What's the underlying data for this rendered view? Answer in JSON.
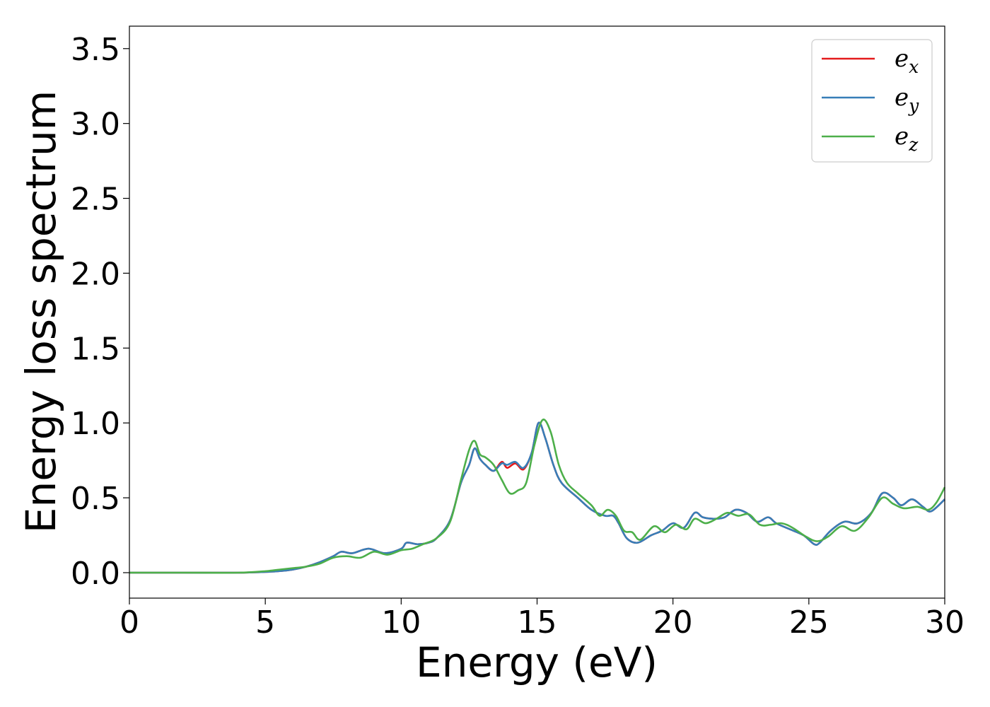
{
  "chart_data": {
    "type": "line",
    "title": "",
    "xlabel": "Energy (eV)",
    "ylabel": "Energy loss spectrum",
    "xlim": [
      0,
      30
    ],
    "ylim": [
      -0.17,
      3.65
    ],
    "xticks": [
      0,
      5,
      10,
      15,
      20,
      25,
      30
    ],
    "yticks": [
      0.0,
      0.5,
      1.0,
      1.5,
      2.0,
      2.5,
      3.0,
      3.5
    ],
    "xtick_labels": [
      "0",
      "5",
      "10",
      "15",
      "20",
      "25",
      "30"
    ],
    "ytick_labels": [
      "0.0",
      "0.5",
      "1.0",
      "1.5",
      "2.0",
      "2.5",
      "3.0",
      "3.5"
    ],
    "grid": false,
    "legend_position": "top-right",
    "series": [
      {
        "name": "e_x",
        "legend_base": "e",
        "legend_sub": "x",
        "color": "#e41a1c",
        "points": [
          [
            0,
            0.0
          ],
          [
            2,
            0.0
          ],
          [
            4,
            0.0
          ],
          [
            5,
            0.005
          ],
          [
            5.5,
            0.01
          ],
          [
            6,
            0.02
          ],
          [
            6.5,
            0.04
          ],
          [
            7,
            0.07
          ],
          [
            7.5,
            0.11
          ],
          [
            7.8,
            0.14
          ],
          [
            8.2,
            0.13
          ],
          [
            8.8,
            0.16
          ],
          [
            9.4,
            0.13
          ],
          [
            10,
            0.16
          ],
          [
            10.2,
            0.2
          ],
          [
            10.6,
            0.19
          ],
          [
            11,
            0.2
          ],
          [
            11.3,
            0.23
          ],
          [
            11.8,
            0.35
          ],
          [
            12.2,
            0.6
          ],
          [
            12.5,
            0.72
          ],
          [
            12.7,
            0.83
          ],
          [
            12.9,
            0.76
          ],
          [
            13.1,
            0.72
          ],
          [
            13.4,
            0.68
          ],
          [
            13.7,
            0.74
          ],
          [
            13.9,
            0.7
          ],
          [
            14.2,
            0.73
          ],
          [
            14.5,
            0.69
          ],
          [
            14.8,
            0.8
          ],
          [
            15.05,
            1.0
          ],
          [
            15.3,
            0.9
          ],
          [
            15.6,
            0.72
          ],
          [
            15.9,
            0.6
          ],
          [
            16.5,
            0.5
          ],
          [
            17,
            0.42
          ],
          [
            17.5,
            0.38
          ],
          [
            17.8,
            0.38
          ],
          [
            18,
            0.33
          ],
          [
            18.3,
            0.23
          ],
          [
            18.7,
            0.2
          ],
          [
            19.2,
            0.25
          ],
          [
            19.6,
            0.28
          ],
          [
            20,
            0.33
          ],
          [
            20.4,
            0.3
          ],
          [
            20.8,
            0.4
          ],
          [
            21.1,
            0.37
          ],
          [
            21.5,
            0.36
          ],
          [
            21.9,
            0.37
          ],
          [
            22.3,
            0.42
          ],
          [
            22.7,
            0.4
          ],
          [
            23.1,
            0.34
          ],
          [
            23.5,
            0.37
          ],
          [
            23.8,
            0.33
          ],
          [
            24.3,
            0.29
          ],
          [
            24.8,
            0.25
          ],
          [
            25.2,
            0.19
          ],
          [
            25.4,
            0.2
          ],
          [
            25.8,
            0.28
          ],
          [
            26.3,
            0.34
          ],
          [
            26.8,
            0.33
          ],
          [
            27.3,
            0.4
          ],
          [
            27.7,
            0.53
          ],
          [
            28.1,
            0.5
          ],
          [
            28.4,
            0.45
          ],
          [
            28.8,
            0.49
          ],
          [
            29.2,
            0.44
          ],
          [
            29.5,
            0.41
          ],
          [
            30,
            0.49
          ]
        ]
      },
      {
        "name": "e_y",
        "legend_base": "e",
        "legend_sub": "y",
        "color": "#377eb8",
        "points": [
          [
            0,
            0.0
          ],
          [
            2,
            0.0
          ],
          [
            4,
            0.0
          ],
          [
            5,
            0.005
          ],
          [
            5.5,
            0.01
          ],
          [
            6,
            0.02
          ],
          [
            6.5,
            0.04
          ],
          [
            7,
            0.07
          ],
          [
            7.5,
            0.11
          ],
          [
            7.8,
            0.14
          ],
          [
            8.2,
            0.13
          ],
          [
            8.8,
            0.16
          ],
          [
            9.4,
            0.13
          ],
          [
            10,
            0.16
          ],
          [
            10.2,
            0.2
          ],
          [
            10.6,
            0.19
          ],
          [
            11,
            0.2
          ],
          [
            11.3,
            0.23
          ],
          [
            11.8,
            0.35
          ],
          [
            12.2,
            0.6
          ],
          [
            12.5,
            0.72
          ],
          [
            12.7,
            0.83
          ],
          [
            12.9,
            0.76
          ],
          [
            13.1,
            0.72
          ],
          [
            13.4,
            0.68
          ],
          [
            13.7,
            0.73
          ],
          [
            13.9,
            0.72
          ],
          [
            14.2,
            0.74
          ],
          [
            14.5,
            0.7
          ],
          [
            14.8,
            0.8
          ],
          [
            15.05,
            1.0
          ],
          [
            15.3,
            0.9
          ],
          [
            15.6,
            0.72
          ],
          [
            15.9,
            0.6
          ],
          [
            16.5,
            0.5
          ],
          [
            17,
            0.42
          ],
          [
            17.5,
            0.38
          ],
          [
            17.8,
            0.38
          ],
          [
            18,
            0.33
          ],
          [
            18.3,
            0.23
          ],
          [
            18.7,
            0.2
          ],
          [
            19.2,
            0.25
          ],
          [
            19.6,
            0.28
          ],
          [
            20,
            0.33
          ],
          [
            20.4,
            0.3
          ],
          [
            20.8,
            0.4
          ],
          [
            21.1,
            0.37
          ],
          [
            21.5,
            0.36
          ],
          [
            21.9,
            0.37
          ],
          [
            22.3,
            0.42
          ],
          [
            22.7,
            0.4
          ],
          [
            23.1,
            0.34
          ],
          [
            23.5,
            0.37
          ],
          [
            23.8,
            0.33
          ],
          [
            24.3,
            0.29
          ],
          [
            24.8,
            0.25
          ],
          [
            25.2,
            0.19
          ],
          [
            25.4,
            0.2
          ],
          [
            25.8,
            0.28
          ],
          [
            26.3,
            0.34
          ],
          [
            26.8,
            0.33
          ],
          [
            27.3,
            0.4
          ],
          [
            27.7,
            0.53
          ],
          [
            28.1,
            0.5
          ],
          [
            28.4,
            0.45
          ],
          [
            28.8,
            0.49
          ],
          [
            29.2,
            0.44
          ],
          [
            29.5,
            0.41
          ],
          [
            30,
            0.49
          ]
        ]
      },
      {
        "name": "e_z",
        "legend_base": "e",
        "legend_sub": "z",
        "color": "#4daf4a",
        "points": [
          [
            0,
            0.0
          ],
          [
            2,
            0.0
          ],
          [
            4,
            0.0
          ],
          [
            5,
            0.01
          ],
          [
            5.5,
            0.02
          ],
          [
            6,
            0.03
          ],
          [
            6.5,
            0.04
          ],
          [
            7,
            0.06
          ],
          [
            7.5,
            0.1
          ],
          [
            8,
            0.11
          ],
          [
            8.5,
            0.1
          ],
          [
            9,
            0.14
          ],
          [
            9.5,
            0.12
          ],
          [
            10,
            0.15
          ],
          [
            10.4,
            0.16
          ],
          [
            10.8,
            0.19
          ],
          [
            11.3,
            0.23
          ],
          [
            11.8,
            0.34
          ],
          [
            12.2,
            0.62
          ],
          [
            12.5,
            0.82
          ],
          [
            12.7,
            0.88
          ],
          [
            12.9,
            0.79
          ],
          [
            13.1,
            0.77
          ],
          [
            13.4,
            0.72
          ],
          [
            13.7,
            0.62
          ],
          [
            14,
            0.53
          ],
          [
            14.3,
            0.55
          ],
          [
            14.6,
            0.6
          ],
          [
            14.9,
            0.85
          ],
          [
            15.2,
            1.02
          ],
          [
            15.5,
            0.94
          ],
          [
            15.8,
            0.72
          ],
          [
            16.1,
            0.6
          ],
          [
            16.5,
            0.53
          ],
          [
            17,
            0.45
          ],
          [
            17.3,
            0.38
          ],
          [
            17.6,
            0.42
          ],
          [
            17.9,
            0.38
          ],
          [
            18.2,
            0.28
          ],
          [
            18.5,
            0.27
          ],
          [
            18.8,
            0.22
          ],
          [
            19.3,
            0.31
          ],
          [
            19.7,
            0.27
          ],
          [
            20.1,
            0.32
          ],
          [
            20.5,
            0.29
          ],
          [
            20.8,
            0.36
          ],
          [
            21.2,
            0.33
          ],
          [
            21.6,
            0.36
          ],
          [
            22,
            0.4
          ],
          [
            22.4,
            0.38
          ],
          [
            22.8,
            0.39
          ],
          [
            23.2,
            0.32
          ],
          [
            23.6,
            0.32
          ],
          [
            24,
            0.33
          ],
          [
            24.4,
            0.3
          ],
          [
            24.9,
            0.24
          ],
          [
            25.3,
            0.21
          ],
          [
            25.7,
            0.24
          ],
          [
            26.2,
            0.31
          ],
          [
            26.7,
            0.28
          ],
          [
            27.2,
            0.37
          ],
          [
            27.7,
            0.5
          ],
          [
            28.1,
            0.46
          ],
          [
            28.5,
            0.43
          ],
          [
            29,
            0.44
          ],
          [
            29.4,
            0.42
          ],
          [
            29.7,
            0.47
          ],
          [
            30,
            0.57
          ]
        ]
      }
    ]
  }
}
